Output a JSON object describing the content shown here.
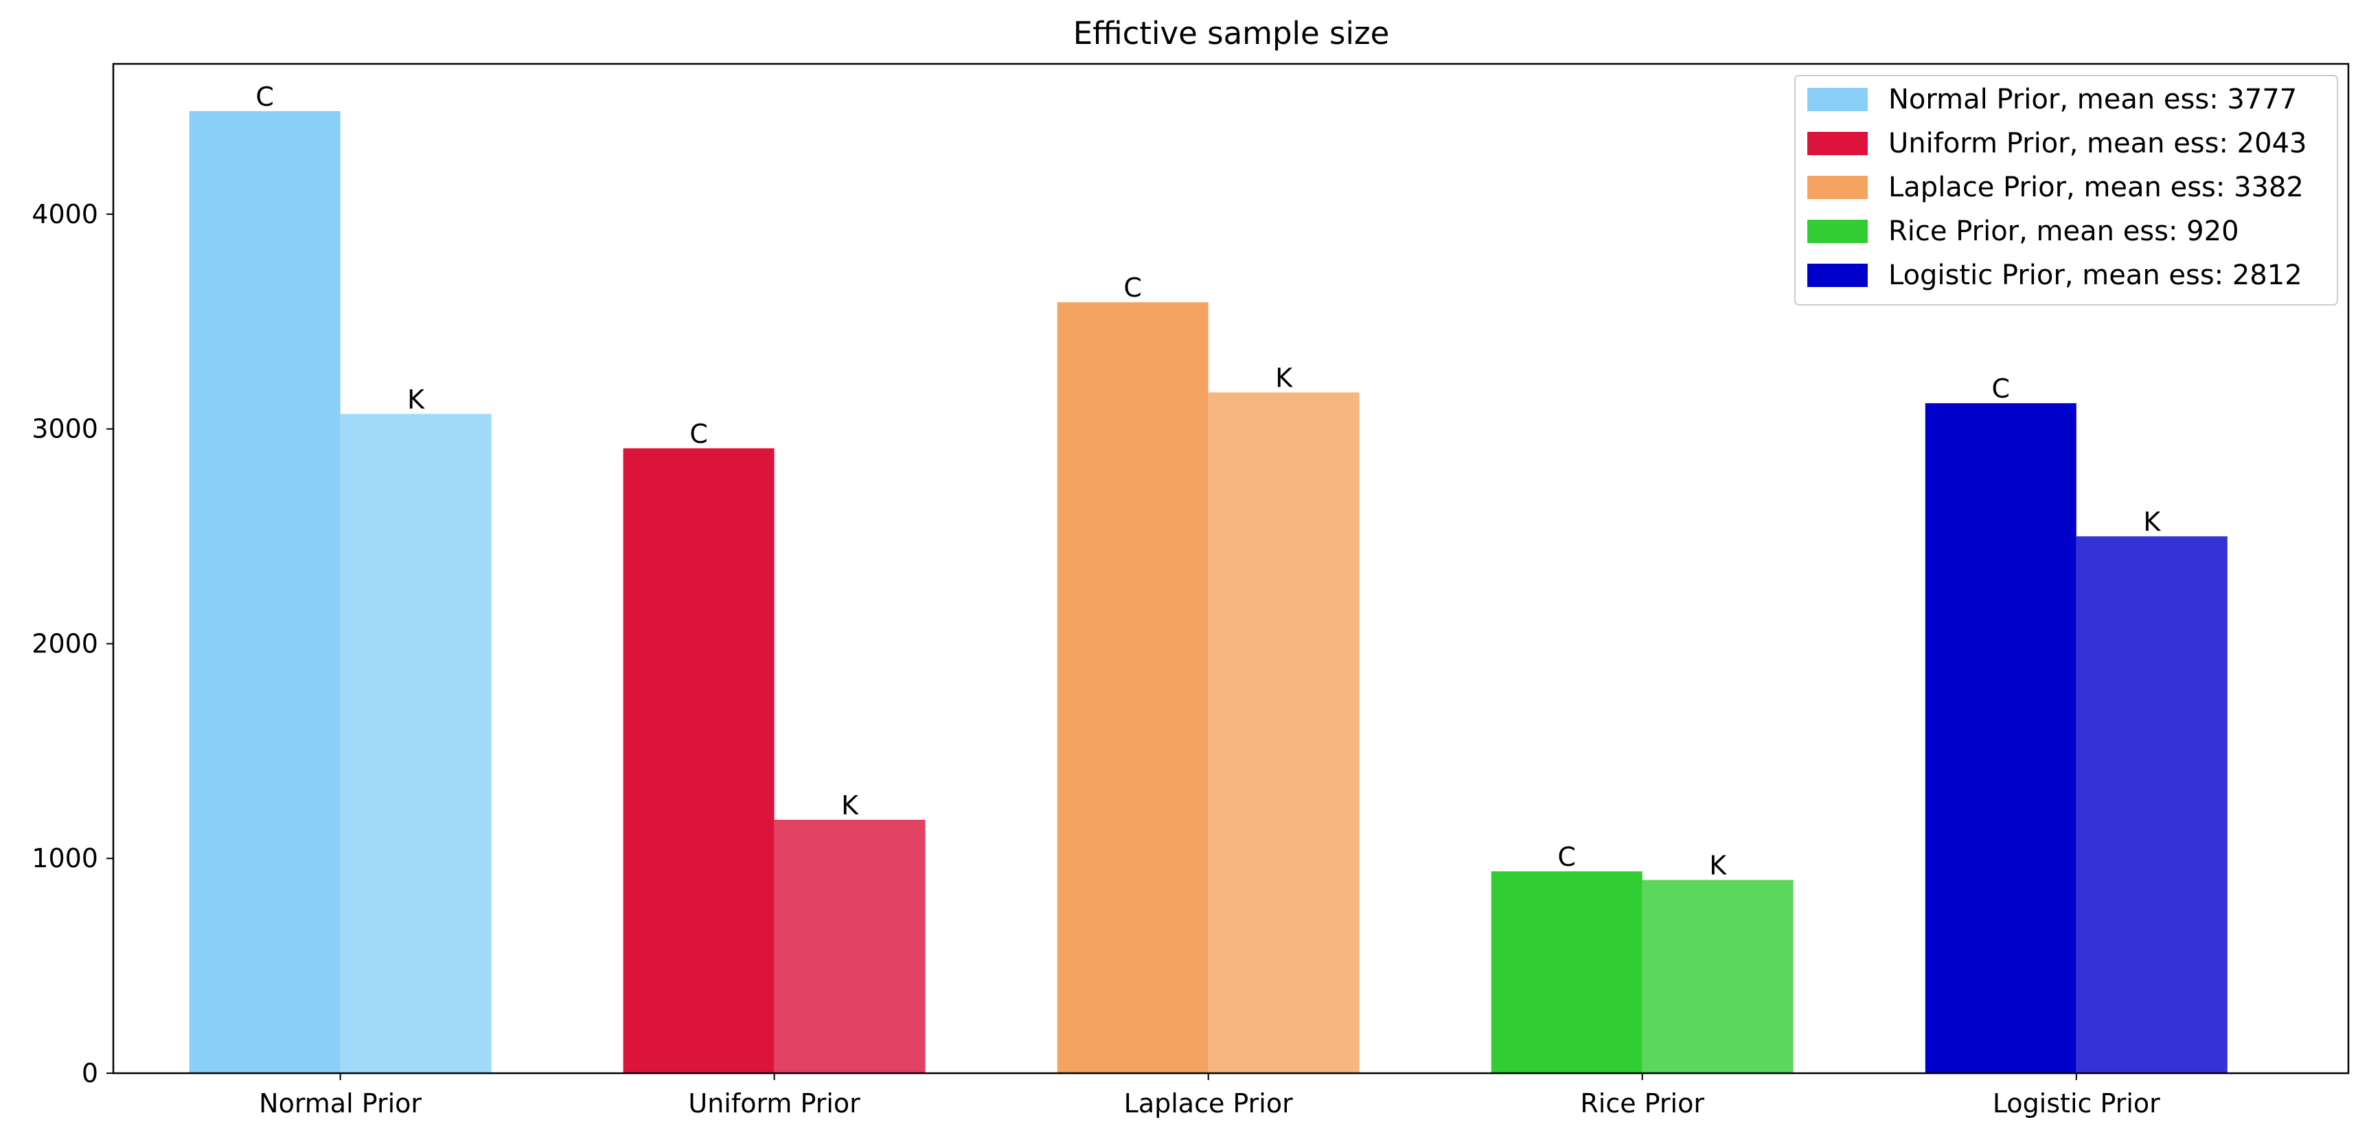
{
  "chart_data": {
    "type": "bar",
    "title": "Effictive sample size",
    "xlabel": "",
    "ylabel": "",
    "ylim": [
      0,
      4700
    ],
    "yticks": [
      0,
      1000,
      2000,
      3000,
      4000
    ],
    "categories": [
      "Normal Prior",
      "Uniform Prior",
      "Laplace Prior",
      "Rice Prior",
      "Logistic Prior"
    ],
    "bar_labels": [
      "C",
      "K"
    ],
    "series": [
      {
        "name": "C",
        "values": [
          4480,
          2910,
          3590,
          940,
          3120
        ]
      },
      {
        "name": "K",
        "values": [
          3070,
          1180,
          3170,
          900,
          2500
        ]
      }
    ],
    "category_colors": [
      "#89CFF8",
      "#DC143C",
      "#F4A460",
      "#32CD32",
      "#0000CD"
    ],
    "second_series_lightened": true,
    "legend": {
      "position": "top-right",
      "entries": [
        "Normal Prior, mean ess: 3777",
        "Uniform Prior, mean ess: 2043",
        "Laplace Prior, mean ess: 3382",
        "Rice Prior, mean ess: 920",
        "Logistic Prior, mean ess: 2812"
      ]
    },
    "grid": false
  }
}
